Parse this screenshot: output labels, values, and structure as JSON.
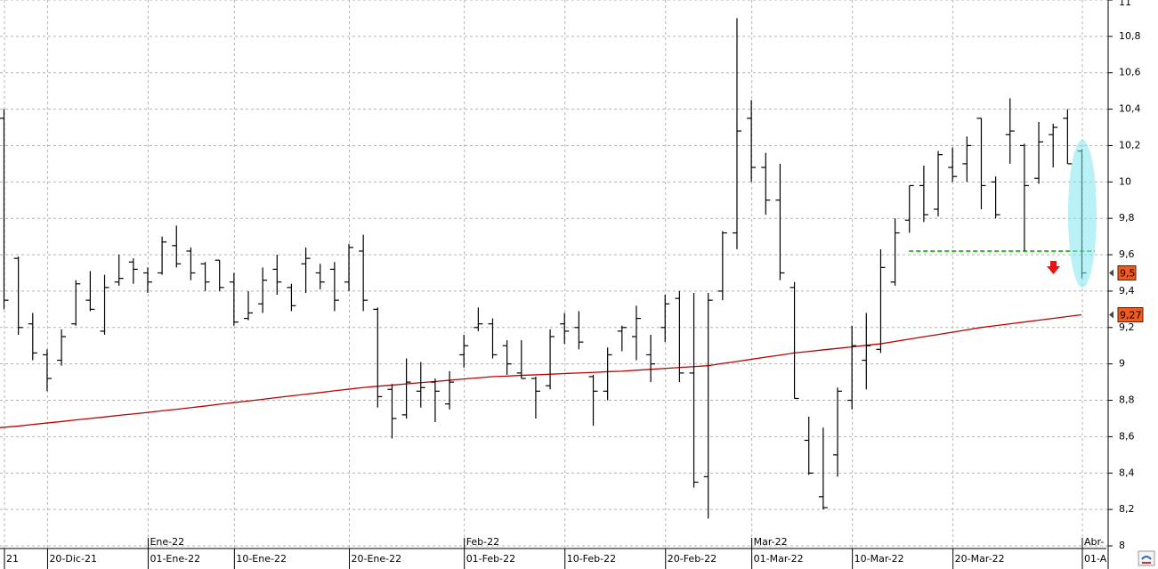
{
  "chart_data": {
    "type": "ohlc",
    "categories": [
      "21",
      null,
      null,
      "20-Dic-21",
      null,
      null,
      null,
      null,
      null,
      null,
      "01-Ene-22",
      null,
      null,
      null,
      null,
      null,
      "10-Ene-22",
      null,
      null,
      null,
      null,
      null,
      null,
      null,
      "20-Ene-22",
      null,
      null,
      null,
      null,
      null,
      null,
      null,
      "01-Feb-22",
      null,
      null,
      null,
      null,
      null,
      null,
      "10-Feb-22",
      null,
      null,
      null,
      null,
      null,
      null,
      "20-Feb-22",
      null,
      null,
      null,
      null,
      null,
      "01-Mar-22",
      null,
      null,
      null,
      null,
      null,
      null,
      "10-Mar-22",
      null,
      null,
      null,
      null,
      null,
      null,
      "20-Mar-22",
      null,
      null,
      null,
      null,
      null,
      null,
      null,
      null,
      "01-A"
    ],
    "period_labels": [
      null,
      null,
      null,
      null,
      null,
      null,
      null,
      null,
      null,
      null,
      "Ene-22",
      null,
      null,
      null,
      null,
      null,
      null,
      null,
      null,
      null,
      null,
      null,
      null,
      null,
      null,
      null,
      null,
      null,
      null,
      null,
      null,
      null,
      "Feb-22",
      null,
      null,
      null,
      null,
      null,
      null,
      null,
      null,
      null,
      null,
      null,
      null,
      null,
      null,
      null,
      null,
      null,
      null,
      null,
      "Mar-22",
      null,
      null,
      null,
      null,
      null,
      null,
      null,
      null,
      null,
      null,
      null,
      null,
      null,
      null,
      null,
      null,
      null,
      null,
      null,
      null,
      null,
      null,
      "Abr-"
    ],
    "open": [
      10.35,
      9.58,
      9.22,
      9.05,
      9.02,
      9.22,
      9.35,
      9.18,
      9.45,
      9.56,
      9.5,
      9.5,
      9.65,
      9.62,
      9.55,
      9.57,
      9.45,
      9.25,
      9.33,
      9.52,
      9.42,
      9.55,
      9.5,
      9.52,
      9.45,
      9.62,
      9.3,
      8.86,
      8.72,
      8.85,
      8.9,
      8.78,
      9.05,
      9.2,
      9.22,
      9.1,
      8.95,
      8.92,
      8.88,
      9.22,
      9.2,
      8.93,
      8.85,
      9.18,
      9.15,
      9.05,
      9.2,
      9.36,
      8.95,
      8.38,
      9.4,
      9.72,
      10.35,
      10.08,
      9.9,
      9.42,
      8.58,
      8.27,
      8.5,
      8.8,
      9.02,
      9.08,
      9.45,
      9.79,
      9.98,
      9.85,
      10.08,
      10.1,
      10.35,
      10.0,
      10.26,
      10.2,
      10.02,
      10.26,
      10.35,
      10.17
    ],
    "high": [
      10.4,
      9.59,
      9.28,
      9.08,
      9.19,
      9.46,
      9.51,
      9.49,
      9.6,
      9.58,
      9.53,
      9.7,
      9.76,
      9.64,
      9.56,
      9.57,
      9.5,
      9.4,
      9.53,
      9.6,
      9.44,
      9.64,
      9.55,
      9.56,
      9.66,
      9.71,
      9.31,
      8.89,
      9.03,
      9.01,
      8.92,
      8.96,
      9.16,
      9.31,
      9.25,
      9.13,
      9.13,
      8.93,
      9.19,
      9.28,
      9.29,
      8.94,
      9.09,
      9.21,
      9.32,
      9.16,
      9.38,
      9.4,
      9.39,
      9.39,
      9.73,
      10.9,
      10.45,
      10.16,
      10.1,
      9.45,
      8.71,
      8.65,
      8.87,
      9.21,
      9.28,
      9.63,
      9.8,
      9.98,
      10.09,
      10.17,
      10.19,
      10.25,
      10.35,
      10.03,
      10.46,
      10.21,
      10.33,
      10.32,
      10.4,
      10.18
    ],
    "low": [
      9.3,
      9.16,
      9.02,
      8.85,
      8.99,
      9.21,
      9.29,
      9.16,
      9.43,
      9.44,
      9.39,
      9.49,
      9.53,
      9.46,
      9.4,
      9.4,
      9.21,
      9.24,
      9.28,
      9.38,
      9.29,
      9.39,
      9.41,
      9.29,
      9.4,
      9.29,
      8.76,
      8.59,
      8.7,
      8.76,
      8.68,
      8.75,
      8.98,
      9.18,
      9.03,
      8.94,
      8.92,
      8.7,
      8.86,
      9.11,
      9.08,
      8.66,
      8.8,
      9.07,
      9.02,
      8.9,
      9.12,
      8.9,
      8.32,
      8.15,
      9.35,
      9.63,
      10.0,
      9.82,
      9.46,
      8.81,
      8.39,
      8.2,
      8.38,
      8.75,
      8.86,
      9.06,
      9.43,
      9.72,
      9.78,
      9.81,
      10.0,
      10.0,
      9.85,
      9.8,
      10.1,
      9.62,
      9.99,
      10.08,
      10.1,
      9.47
    ],
    "close": [
      9.35,
      9.2,
      9.06,
      8.92,
      9.15,
      9.44,
      9.3,
      9.42,
      9.47,
      9.52,
      9.45,
      9.67,
      9.55,
      9.5,
      9.45,
      9.42,
      9.23,
      9.28,
      9.46,
      9.45,
      9.32,
      9.58,
      9.45,
      9.35,
      9.64,
      9.35,
      8.82,
      8.7,
      8.9,
      8.87,
      8.85,
      8.9,
      9.1,
      9.22,
      9.05,
      9.0,
      8.92,
      8.85,
      9.15,
      9.18,
      9.12,
      8.85,
      9.05,
      9.2,
      9.25,
      9.0,
      9.33,
      8.95,
      8.35,
      9.35,
      9.72,
      10.28,
      10.08,
      9.9,
      9.5,
      8.81,
      8.4,
      8.21,
      8.85,
      9.1,
      9.1,
      9.53,
      9.72,
      9.98,
      9.82,
      10.15,
      10.03,
      10.2,
      9.98,
      9.82,
      10.28,
      9.98,
      10.22,
      10.3,
      10.1,
      9.5
    ],
    "color": "#000000",
    "moving_average": {
      "color": "#c00000",
      "values": [
        8.65,
        8.658,
        8.667,
        8.675,
        8.683,
        8.692,
        8.7,
        8.708,
        8.717,
        8.725,
        8.733,
        8.742,
        8.75,
        8.759,
        8.768,
        8.778,
        8.787,
        8.796,
        8.805,
        8.815,
        8.824,
        8.833,
        8.842,
        8.852,
        8.861,
        8.87,
        8.877,
        8.883,
        8.89,
        8.897,
        8.903,
        8.91,
        8.917,
        8.923,
        8.93,
        8.933,
        8.937,
        8.94,
        8.943,
        8.947,
        8.95,
        8.953,
        8.957,
        8.96,
        8.965,
        8.97,
        8.975,
        8.98,
        8.985,
        8.99,
        9.002,
        9.013,
        9.025,
        9.037,
        9.048,
        9.06,
        9.068,
        9.077,
        9.085,
        9.093,
        9.102,
        9.11,
        9.123,
        9.136,
        9.149,
        9.161,
        9.174,
        9.187,
        9.2,
        9.21,
        9.22,
        9.23,
        9.24,
        9.25,
        9.26,
        9.27
      ]
    },
    "support_level": {
      "value": 9.62,
      "color": "#22c822"
    },
    "price_tags": [
      {
        "value": 9.5,
        "label": "9,5",
        "color": "#f05a1e"
      },
      {
        "value": 9.27,
        "label": "9,27",
        "color": "#f05a1e"
      }
    ],
    "ylim": [
      8,
      11
    ],
    "yticks": [
      8,
      {
        "value": 8.2,
        "label": "8,2"
      },
      {
        "value": 8.4,
        "label": "8,4"
      },
      {
        "value": 8.6,
        "label": "8,6"
      },
      {
        "value": 8.8,
        "label": "8,8"
      },
      9,
      {
        "value": 9.2,
        "label": "9,2"
      },
      {
        "value": 9.4,
        "label": "9,4"
      },
      {
        "value": 9.6,
        "label": "9,6"
      },
      {
        "value": 9.8,
        "label": "9,8"
      },
      10,
      {
        "value": 10.2,
        "label": "10,2"
      },
      {
        "value": 10.4,
        "label": "10,4"
      },
      {
        "value": 10.6,
        "label": "10,6"
      },
      {
        "value": 10.8,
        "label": "10,8"
      },
      11
    ],
    "grid": true
  }
}
